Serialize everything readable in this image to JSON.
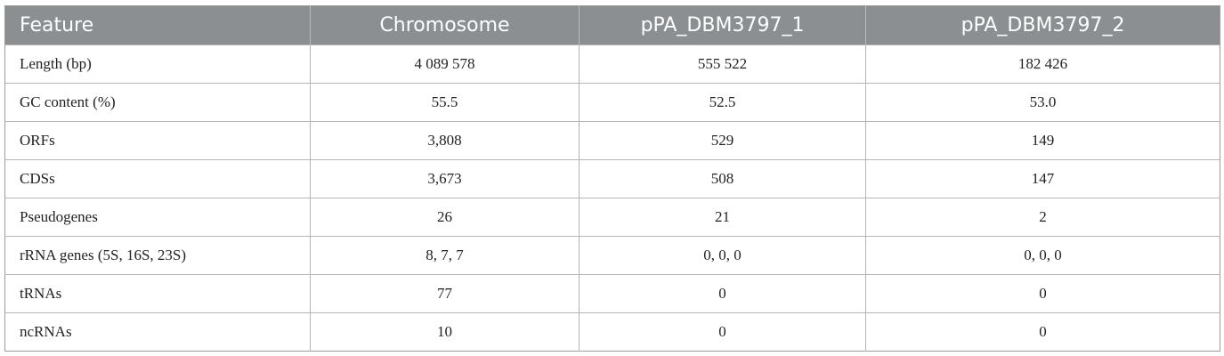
{
  "table": {
    "headers": [
      "Feature",
      "Chromosome",
      "pPA_DBM3797_1",
      "pPA_DBM3797_2"
    ],
    "rows": [
      [
        "Length (bp)",
        "4 089 578",
        "555 522",
        "182 426"
      ],
      [
        "GC content (%)",
        "55.5",
        "52.5",
        "53.0"
      ],
      [
        "ORFs",
        "3,808",
        "529",
        "149"
      ],
      [
        "CDSs",
        "3,673",
        "508",
        "147"
      ],
      [
        "Pseudogenes",
        "26",
        "21",
        "2"
      ],
      [
        "rRNA genes (5S, 16S, 23S)",
        "8, 7, 7",
        "0, 0, 0",
        "0, 0, 0"
      ],
      [
        "tRNAs",
        "77",
        "0",
        "0"
      ],
      [
        "ncRNAs",
        "10",
        "0",
        "0"
      ]
    ]
  },
  "colors": {
    "header_bg": "#8c8f91",
    "header_text": "#ffffff",
    "grid_line": "#b5b5b5"
  }
}
